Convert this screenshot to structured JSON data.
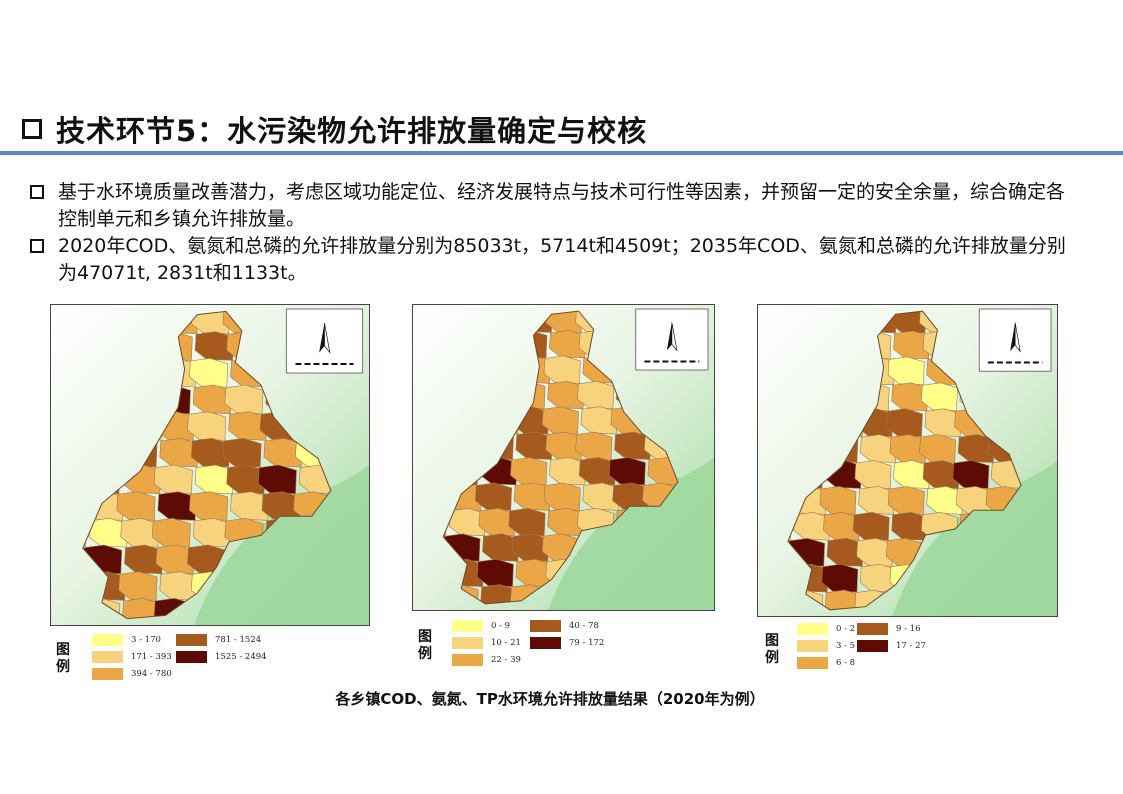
{
  "header": {
    "title": "技术环节5：水污染物允许排放量确定与校核"
  },
  "bullets": [
    "基于水环境质量改善潜力，考虑区域功能定位、经济发展特点与技术可行性等因素，并预留一定的安全余量，综合确定各控制单元和乡镇允许排放量。",
    "2020年COD、氨氮和总磷的允许排放量分别为85033t，5714t和4509t；2035年COD、氨氮和总磷的允许排放量分别为47071t, 2831t和1133t。"
  ],
  "colors": {
    "class1": "#ffff8a",
    "class2": "#f8d37e",
    "class3": "#eba646",
    "class4": "#a65a1d",
    "class5": "#5e0b05",
    "background_relief": "#9fd89f",
    "title_rule": "#5b86c9"
  },
  "maps": [
    {
      "pollutant": "COD",
      "legend_title": "图例",
      "legend": [
        {
          "label": "3 - 170",
          "color": "#ffff8a"
        },
        {
          "label": "171 - 393",
          "color": "#f8d37e"
        },
        {
          "label": "394 - 780",
          "color": "#eba646"
        },
        {
          "label": "781 - 1524",
          "color": "#a65a1d"
        },
        {
          "label": "1525 - 2494",
          "color": "#5e0b05"
        }
      ]
    },
    {
      "pollutant": "氨氮",
      "legend_title": "图例",
      "legend": [
        {
          "label": "0 - 9",
          "color": "#ffff8a"
        },
        {
          "label": "10 - 21",
          "color": "#f8d37e"
        },
        {
          "label": "22 - 39",
          "color": "#eba646"
        },
        {
          "label": "40 - 78",
          "color": "#a65a1d"
        },
        {
          "label": "79 - 172",
          "color": "#5e0b05"
        }
      ]
    },
    {
      "pollutant": "TP",
      "legend_title": "图例",
      "legend": [
        {
          "label": "0 - 2",
          "color": "#ffff8a"
        },
        {
          "label": "3 - 5",
          "color": "#f8d37e"
        },
        {
          "label": "6 - 8",
          "color": "#eba646"
        },
        {
          "label": "9 - 16",
          "color": "#a65a1d"
        },
        {
          "label": "17 - 27",
          "color": "#5e0b05"
        }
      ]
    }
  ],
  "caption": "各乡镇COD、氨氮、TP水环境允许排放量结果（2020年为例）"
}
